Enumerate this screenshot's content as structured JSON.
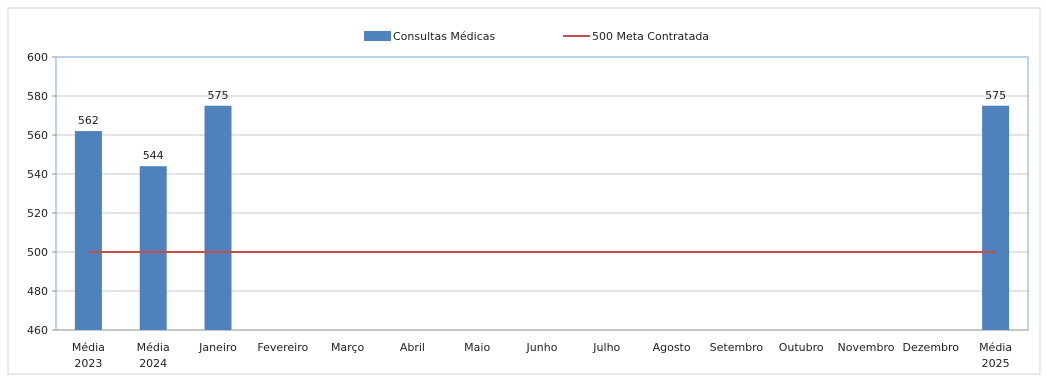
{
  "chart_data": {
    "type": "bar",
    "categories": [
      "Média 2023",
      "Média 2024",
      "Janeiro",
      "Fevereiro",
      "Março",
      "Abril",
      "Maio",
      "Junho",
      "Julho",
      "Agosto",
      "Setembro",
      "Outubro",
      "Novembro",
      "Dezembro",
      "Média 2025"
    ],
    "series": [
      {
        "name": "Consultas Médicas",
        "values": [
          562,
          544,
          575,
          null,
          null,
          null,
          null,
          null,
          null,
          null,
          null,
          null,
          null,
          null,
          575
        ],
        "color": "#4f81bd",
        "data_labels": [
          "562",
          "544",
          "575",
          "",
          "",
          "",
          "",
          "",
          "",
          "",
          "",
          "",
          "",
          "",
          "575"
        ]
      },
      {
        "name": "500 Meta Contratada",
        "type": "line",
        "values": [
          500,
          500,
          500,
          500,
          500,
          500,
          500,
          500,
          500,
          500,
          500,
          500,
          500,
          500,
          500
        ],
        "color": "#c0504d"
      }
    ],
    "title": "",
    "xlabel": "",
    "ylabel": "",
    "ylim": [
      460,
      600
    ],
    "yticks": [
      460,
      480,
      500,
      520,
      540,
      560,
      580,
      600
    ],
    "grid": true,
    "legend": "top-center"
  },
  "colors": {
    "plot_border": "#7aa7d8",
    "outer_border": "#d0d0d0",
    "grid": "#c8c8c8",
    "axis": "#8c8c8c"
  }
}
